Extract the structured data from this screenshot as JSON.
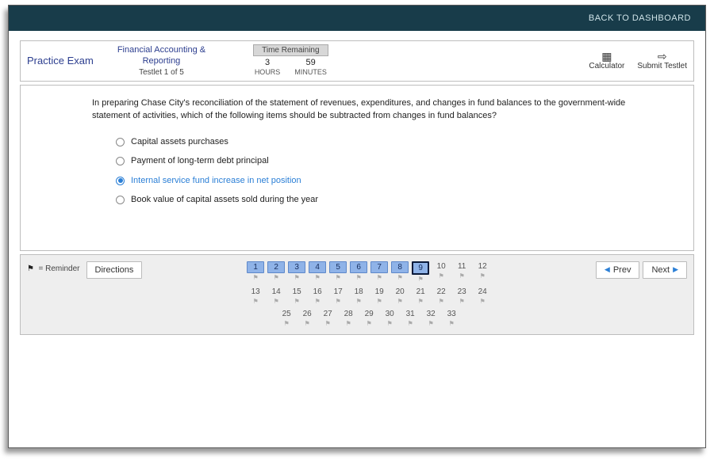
{
  "topbar": {
    "back_label": "BACK TO DASHBOARD"
  },
  "header": {
    "practice_exam_label": "Practice Exam",
    "course_line1": "Financial Accounting &",
    "course_line2": "Reporting",
    "testlet_label": "Testlet 1 of 5",
    "time_remaining_label": "Time Remaining",
    "hours_value": "3",
    "hours_label": "HOURS",
    "minutes_value": "59",
    "minutes_label": "MINUTES",
    "calculator_label": "Calculator",
    "submit_label": "Submit Testlet"
  },
  "question": {
    "text": "In preparing Chase City's reconciliation of the statement of revenues, expenditures, and changes in fund balances to the government-wide statement of activities, which of the following items should be subtracted from changes in fund balances?",
    "options": [
      "Capital assets purchases",
      "Payment of long-term debt principal",
      "Internal service fund increase in net position",
      "Book value of capital assets sold during the year"
    ],
    "selected_index": 2
  },
  "nav": {
    "reminder_label": "= Reminder",
    "directions_label": "Directions",
    "prev_label": "Prev",
    "next_label": "Next",
    "total_questions": 33,
    "answered": [
      1,
      2,
      3,
      4,
      5,
      6,
      7,
      8,
      9
    ],
    "current": 9,
    "row1": [
      1,
      2,
      3,
      4,
      5,
      6,
      7,
      8,
      9,
      10,
      11,
      12
    ],
    "row2": [
      13,
      14,
      15,
      16,
      17,
      18,
      19,
      20,
      21,
      22,
      23,
      24
    ],
    "row3": [
      25,
      26,
      27,
      28,
      29,
      30,
      31,
      32,
      33
    ]
  },
  "colors": {
    "topbar_bg": "#183c4a",
    "accent": "#2b7fd6",
    "answered_bg": "#8fb3e8"
  }
}
